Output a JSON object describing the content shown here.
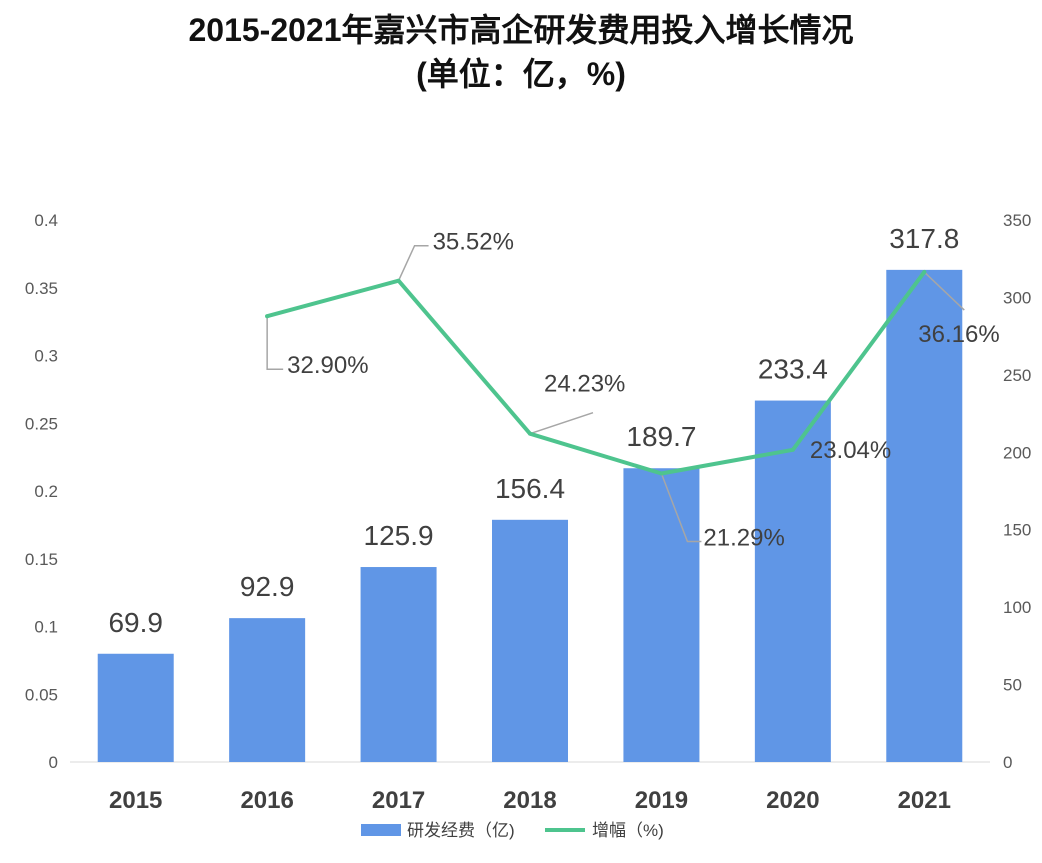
{
  "chart_data": {
    "type": "bar",
    "title_line1": "2015-2021年嘉兴市高企研发费用投入增长情况",
    "title_line2": "(单位：亿，%)",
    "categories": [
      "2015",
      "2016",
      "2017",
      "2018",
      "2019",
      "2020",
      "2021"
    ],
    "series": [
      {
        "name": "研发经费（亿)",
        "type": "bar",
        "axis": "right",
        "color": "#6096e6",
        "values": [
          69.9,
          92.9,
          125.9,
          156.4,
          189.7,
          233.4,
          317.8
        ],
        "labels": [
          "69.9",
          "92.9",
          "125.9",
          "156.4",
          "189.7",
          "233.4",
          "317.8"
        ]
      },
      {
        "name": "增幅（%)",
        "type": "line",
        "axis": "left",
        "color": "#4ec48e",
        "values": [
          null,
          0.329,
          0.3552,
          0.2423,
          0.2129,
          0.2304,
          0.3616
        ],
        "labels": [
          "",
          "32.90%",
          "35.52%",
          "24.23%",
          "21.29%",
          "23.04%",
          "36.16%"
        ]
      }
    ],
    "y_left": {
      "min": 0,
      "max": 0.4,
      "ticks": [
        "0",
        "0.05",
        "0.1",
        "0.15",
        "0.2",
        "0.25",
        "0.3",
        "0.35",
        "0.4"
      ]
    },
    "y_right": {
      "min": 0,
      "max": 350,
      "ticks": [
        "0",
        "50",
        "100",
        "150",
        "200",
        "250",
        "300",
        "350"
      ]
    },
    "legend_position": "bottom",
    "grid": false
  }
}
